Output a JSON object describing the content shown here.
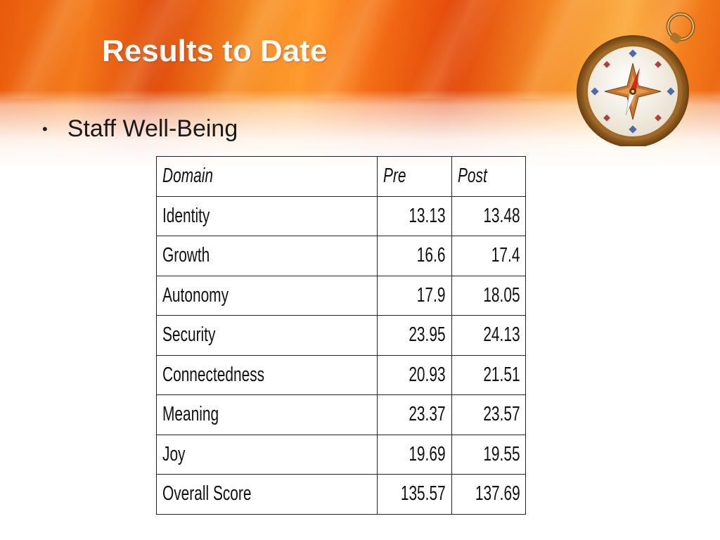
{
  "slide": {
    "title": "Results to Date",
    "bullet": "Staff Well-Being"
  },
  "table": {
    "headers": {
      "domain": "Domain",
      "pre": "Pre",
      "post": "Post"
    },
    "rows": [
      {
        "domain": "Identity",
        "pre": "13.13",
        "post": "13.48"
      },
      {
        "domain": "Growth",
        "pre": "16.6",
        "post": "17.4"
      },
      {
        "domain": "Autonomy",
        "pre": "17.9",
        "post": "18.05"
      },
      {
        "domain": "Security",
        "pre": "23.95",
        "post": "24.13"
      },
      {
        "domain": "Connectedness",
        "pre": "20.93",
        "post": "21.51"
      },
      {
        "domain": "Meaning",
        "pre": "23.37",
        "post": "23.57"
      },
      {
        "domain": "Joy",
        "pre": "19.69",
        "post": "19.55"
      },
      {
        "domain": "Overall Score",
        "pre": "135.57",
        "post": "137.69"
      }
    ]
  },
  "decor": {
    "banner_color": "#f26a14",
    "icon": "compass-icon"
  }
}
